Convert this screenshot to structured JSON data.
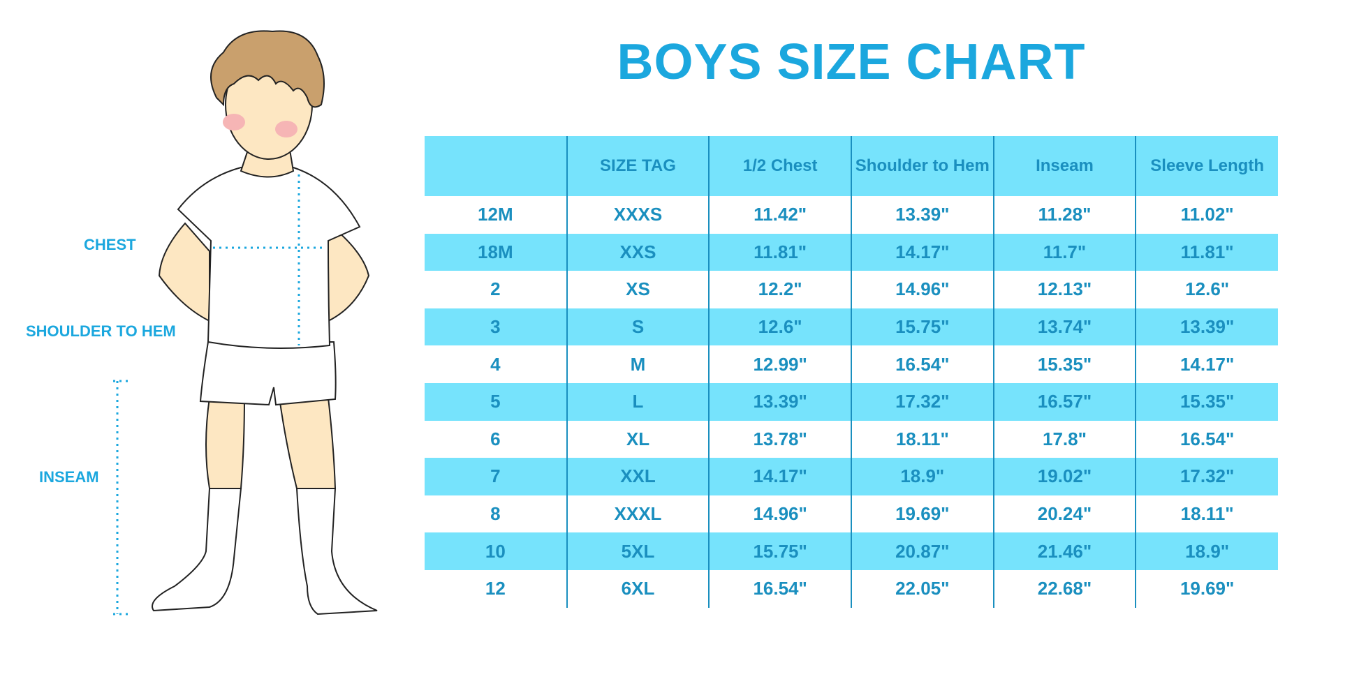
{
  "title": "BOYS SIZE CHART",
  "figure_labels": {
    "chest": "CHEST",
    "shoulder_to_hem": "SHOULDER TO HEM",
    "inseam": "INSEAM"
  },
  "colors": {
    "title": "#1ba7de",
    "header_bg": "#76e3fc",
    "text": "#1a8fbf",
    "stripe": "#76e3fc"
  },
  "table": {
    "headers": [
      "",
      "SIZE TAG",
      "1/2 Chest",
      "Shoulder to Hem",
      "Inseam",
      "Sleeve Length"
    ],
    "rows": [
      [
        "12M",
        "XXXS",
        "11.42\"",
        "13.39\"",
        "11.28\"",
        "11.02\""
      ],
      [
        "18M",
        "XXS",
        "11.81\"",
        "14.17\"",
        "11.7\"",
        "11.81\""
      ],
      [
        "2",
        "XS",
        "12.2\"",
        "14.96\"",
        "12.13\"",
        "12.6\""
      ],
      [
        "3",
        "S",
        "12.6\"",
        "15.75\"",
        "13.74\"",
        "13.39\""
      ],
      [
        "4",
        "M",
        "12.99\"",
        "16.54\"",
        "15.35\"",
        "14.17\""
      ],
      [
        "5",
        "L",
        "13.39\"",
        "17.32\"",
        "16.57\"",
        "15.35\""
      ],
      [
        "6",
        "XL",
        "13.78\"",
        "18.11\"",
        "17.8\"",
        "16.54\""
      ],
      [
        "7",
        "XXL",
        "14.17\"",
        "18.9\"",
        "19.02\"",
        "17.32\""
      ],
      [
        "8",
        "XXXL",
        "14.96\"",
        "19.69\"",
        "20.24\"",
        "18.11\""
      ],
      [
        "10",
        "5XL",
        "15.75\"",
        "20.87\"",
        "21.46\"",
        "18.9\""
      ],
      [
        "12",
        "6XL",
        "16.54\"",
        "22.05\"",
        "22.68\"",
        "19.69\""
      ]
    ]
  }
}
